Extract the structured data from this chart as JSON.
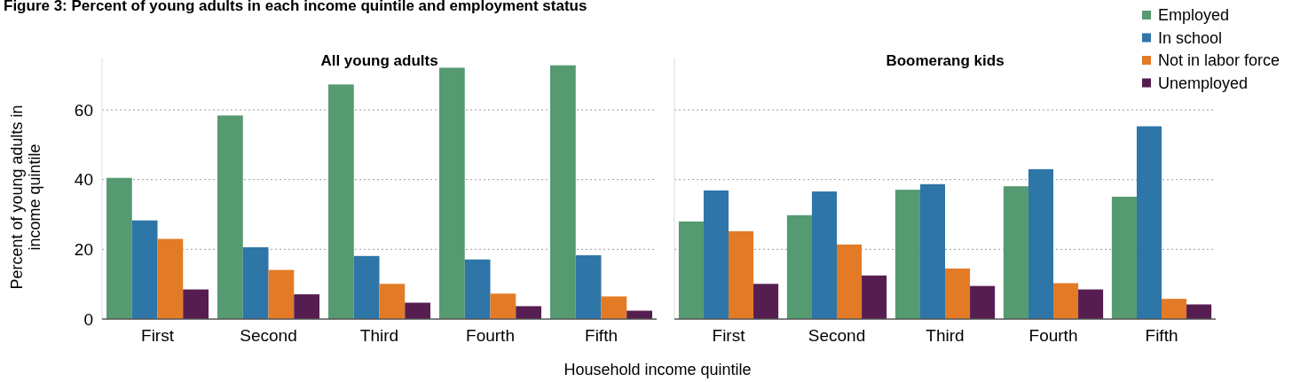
{
  "chart_data": [
    {
      "type": "bar",
      "title": "All young adults",
      "annotations": [
        "Figure 3: Percent of young adults in each income quintile and employment status"
      ],
      "xlabel": "Household income quintile",
      "ylabel": "Percent of young adults in income quintile",
      "categories": [
        "First",
        "Second",
        "Third",
        "Fourth",
        "Fifth"
      ],
      "series": [
        {
          "color": "#559a71",
          "values": [
            40.5,
            58.4,
            67.3,
            72.1,
            72.8
          ]
        },
        {
          "color": "#2e75a8",
          "values": [
            28.3,
            20.6,
            18.1,
            17.1,
            18.3
          ]
        },
        {
          "color": "#e37b26",
          "values": [
            23.0,
            14.1,
            10.1,
            7.3,
            6.5
          ]
        },
        {
          "color": "#561e50",
          "values": [
            8.5,
            7.1,
            4.7,
            3.7,
            2.4
          ]
        }
      ],
      "ylim": [
        0,
        75
      ],
      "yticks": [
        0,
        20,
        40,
        60
      ],
      "grid": "y",
      "legend": false
    },
    {
      "type": "bar",
      "title": "Boomerang kids",
      "categories": [
        "First",
        "Second",
        "Third",
        "Fourth",
        "Fifth"
      ],
      "series": [
        {
          "name": "Employed",
          "color": "#559a71",
          "values": [
            28.0,
            29.8,
            37.1,
            38.1,
            35.1
          ]
        },
        {
          "name": "In school",
          "color": "#2e75a8",
          "values": [
            36.9,
            36.6,
            38.7,
            43.0,
            55.3
          ]
        },
        {
          "name": "Not in labor force",
          "color": "#e37b26",
          "values": [
            25.2,
            21.4,
            14.5,
            10.3,
            5.8
          ]
        },
        {
          "name": "Unemployed",
          "color": "#561e50",
          "values": [
            10.1,
            12.5,
            9.5,
            8.5,
            4.2
          ]
        }
      ],
      "ylim": [
        0,
        75
      ],
      "yticks": [
        0,
        20,
        40,
        60
      ],
      "grid": "y",
      "legend": "top right",
      "tick_labels": "x"
    }
  ]
}
